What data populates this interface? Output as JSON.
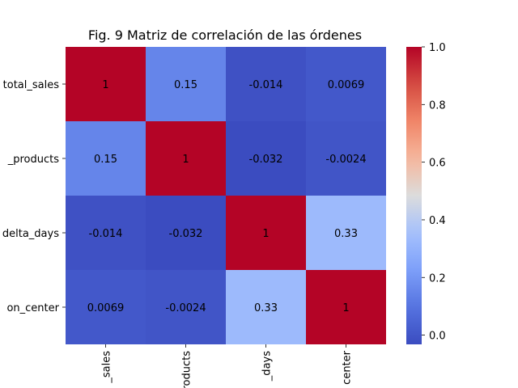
{
  "chart_data": {
    "type": "heatmap",
    "title": "Fig. 9 Matriz de correlación de las órdenes",
    "row_labels": [
      "total_sales",
      "_products",
      "delta_days",
      "on_center"
    ],
    "col_labels": [
      "_sales",
      "roducts",
      "_days",
      "center"
    ],
    "values": [
      [
        1,
        0.15,
        -0.014,
        0.0069
      ],
      [
        0.15,
        1,
        -0.032,
        -0.0024
      ],
      [
        -0.014,
        -0.032,
        1,
        0.33
      ],
      [
        0.0069,
        -0.0024,
        0.33,
        1
      ]
    ],
    "cell_labels": [
      [
        "1",
        "0.15",
        "-0.014",
        "0.0069"
      ],
      [
        "0.15",
        "1",
        "-0.032",
        "-0.0024"
      ],
      [
        "-0.014",
        "-0.032",
        "1",
        "0.33"
      ],
      [
        "0.0069",
        "-0.0024",
        "0.33",
        "1"
      ]
    ],
    "colormap": "coolwarm",
    "vmin": -0.032,
    "vmax": 1.0,
    "colorbar_ticks": [
      0.0,
      0.2,
      0.4,
      0.6,
      0.8,
      1.0
    ],
    "colorbar_tick_labels": [
      "0.0",
      "0.2",
      "0.4",
      "0.6",
      "0.8",
      "1.0"
    ],
    "legend": "colorbar-right",
    "grid": false
  }
}
